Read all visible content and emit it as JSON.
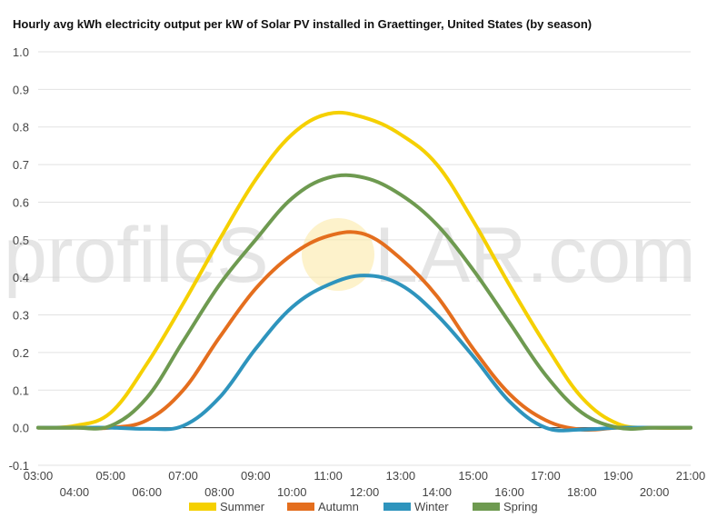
{
  "chart_data": {
    "type": "line",
    "title": "Hourly avg kWh electricity output per kW of Solar PV installed in Graettinger, United States (by season)",
    "xlabel": "",
    "ylabel": "",
    "x": [
      3,
      4,
      5,
      6,
      7,
      8,
      9,
      10,
      11,
      12,
      13,
      14,
      15,
      16,
      17,
      18,
      19,
      20,
      21
    ],
    "x_tick_labels": [
      "03:00",
      "04:00",
      "05:00",
      "06:00",
      "07:00",
      "08:00",
      "09:00",
      "10:00",
      "11:00",
      "12:00",
      "13:00",
      "14:00",
      "15:00",
      "16:00",
      "17:00",
      "18:00",
      "19:00",
      "20:00",
      "21:00"
    ],
    "xlim": [
      3,
      21
    ],
    "ylim": [
      -0.1,
      1.0
    ],
    "y_ticks": [
      "-0.1",
      "0.0",
      "0.1",
      "0.2",
      "0.3",
      "0.4",
      "0.5",
      "0.6",
      "0.7",
      "0.8",
      "0.9",
      "1.0"
    ],
    "grid": true,
    "legend_position": "bottom",
    "series": [
      {
        "name": "Summer",
        "color": "#f5d000",
        "values": [
          0.0,
          0.005,
          0.04,
          0.17,
          0.33,
          0.5,
          0.66,
          0.78,
          0.835,
          0.825,
          0.78,
          0.7,
          0.55,
          0.38,
          0.22,
          0.08,
          0.01,
          0.0,
          0.0
        ]
      },
      {
        "name": "Autumn",
        "color": "#e46e1e",
        "values": [
          0.0,
          0.0,
          0.0,
          0.02,
          0.1,
          0.24,
          0.37,
          0.46,
          0.51,
          0.515,
          0.45,
          0.35,
          0.21,
          0.09,
          0.02,
          -0.005,
          0.0,
          0.0,
          0.0
        ]
      },
      {
        "name": "Winter",
        "color": "#2e94bd",
        "values": [
          0.0,
          0.0,
          0.0,
          -0.003,
          0.005,
          0.08,
          0.21,
          0.32,
          0.38,
          0.405,
          0.38,
          0.3,
          0.19,
          0.07,
          0.0,
          -0.005,
          0.0,
          0.0,
          0.0
        ]
      },
      {
        "name": "Spring",
        "color": "#6e9a50",
        "values": [
          0.0,
          0.0,
          0.005,
          0.08,
          0.23,
          0.38,
          0.5,
          0.61,
          0.665,
          0.665,
          0.62,
          0.54,
          0.42,
          0.28,
          0.14,
          0.04,
          0.0,
          0.0,
          0.0
        ]
      }
    ]
  },
  "watermark": {
    "text_left": "profileS",
    "text_right": "LAR.com"
  }
}
